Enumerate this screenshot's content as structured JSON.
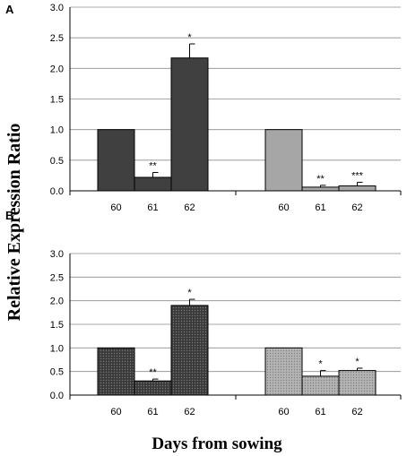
{
  "chart_data": {
    "type": "bar",
    "ylabel": "Relative Expression Ratio",
    "xlabel": "Days from sowing",
    "ylim": [
      0,
      3.0
    ],
    "yticks": [
      "0.0",
      "0.5",
      "1.0",
      "1.5",
      "2.0",
      "2.5",
      "3.0"
    ],
    "grid": true,
    "colors": {
      "dark": "#404040",
      "light": "#a6a6a6",
      "gridline": "#8c8c8c"
    },
    "panels": [
      {
        "label": "A",
        "pattern": "solid",
        "groups": [
          {
            "color": "dark",
            "categories": [
              "60",
              "61",
              "62"
            ],
            "values": [
              1.0,
              0.22,
              2.17
            ],
            "errors": [
              0,
              0.08,
              0.23
            ],
            "significance": [
              "",
              "**",
              "*"
            ]
          },
          {
            "color": "light",
            "categories": [
              "60",
              "61",
              "62"
            ],
            "values": [
              1.0,
              0.06,
              0.08
            ],
            "errors": [
              0,
              0.03,
              0.06
            ],
            "significance": [
              "",
              "**",
              "***"
            ]
          }
        ]
      },
      {
        "label": "B",
        "pattern": "dotted",
        "groups": [
          {
            "color": "dark",
            "categories": [
              "60",
              "61",
              "62"
            ],
            "values": [
              1.0,
              0.3,
              1.9
            ],
            "errors": [
              0,
              0.04,
              0.13
            ],
            "significance": [
              "",
              "**",
              "*"
            ]
          },
          {
            "color": "light",
            "categories": [
              "60",
              "61",
              "62"
            ],
            "values": [
              1.0,
              0.4,
              0.52
            ],
            "errors": [
              0,
              0.12,
              0.05
            ],
            "significance": [
              "",
              "*",
              "*"
            ]
          }
        ]
      }
    ]
  }
}
